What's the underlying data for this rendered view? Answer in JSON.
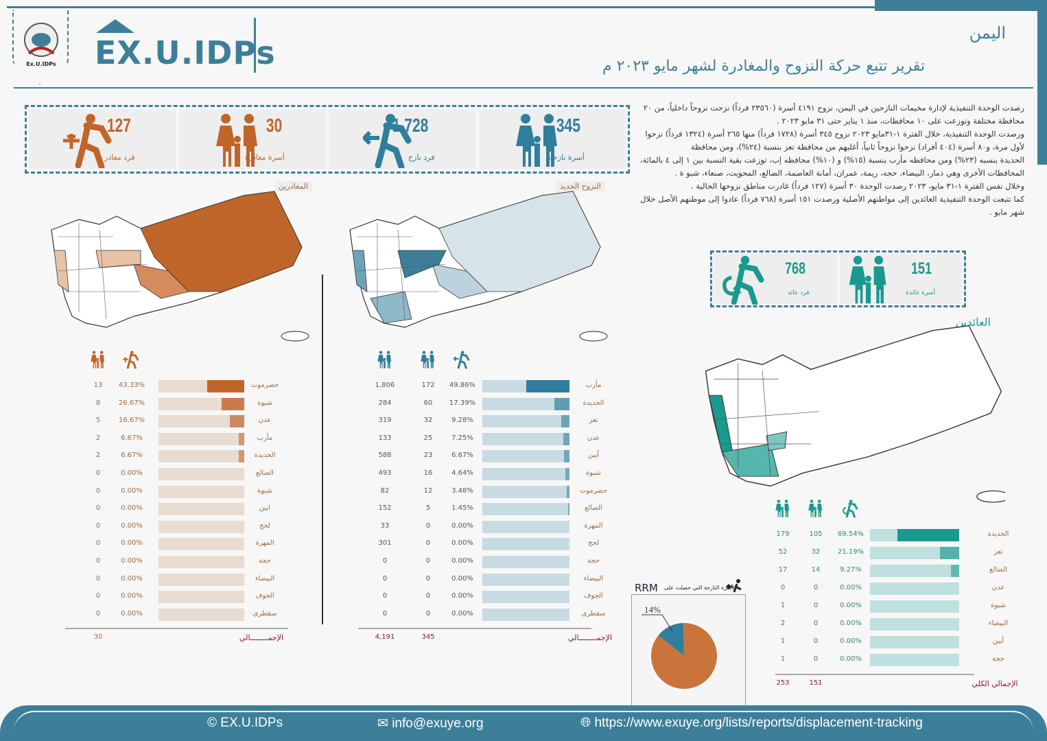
{
  "header": {
    "brand": "EX.U.IDPs",
    "logo_text": "Ex.U.IDPs",
    "country": "اليمن",
    "title": "تقرير تتبع حركة النزوح والمغادرة لشهر مايو ٢٠٢٣ م"
  },
  "colors": {
    "primary": "#3d7f99",
    "departure": "#c0652a",
    "displacement": "#2f7e9c",
    "return": "#1a9a8e"
  },
  "stats": [
    {
      "value": "127",
      "label": "فرد مغادر",
      "icon": "departing-person-plane-icon",
      "color": "orange"
    },
    {
      "value": "30",
      "label": "أسرة مغادرة",
      "icon": "family-icon",
      "color": "orange"
    },
    {
      "value": "1,728",
      "label": "فرد نازح",
      "icon": "displaced-person-icon",
      "color": "blue"
    },
    {
      "value": "345",
      "label": "أسرة نازحة",
      "icon": "family-icon",
      "color": "blue"
    }
  ],
  "returns": [
    {
      "value": "768",
      "label": "فرد عائد",
      "icon": "returning-person-icon"
    },
    {
      "value": "151",
      "label": "أسرة عائدة",
      "icon": "family-icon"
    }
  ],
  "map_titles": {
    "departures": "المغادرين",
    "new_displacement": "النزوح الجديد",
    "returnees": "العائدين"
  },
  "prose": [
    "رصدت الوحدة التنفيذية لإدارة مخيمات النازحين في اليمن، نزوح ٤١٩١ أسرة (٢٣٥٦٠ فرداً) نزحت نزوحاً داخلياً، من ٢٠ محافظة مختلفة وتوزعت على ١٠ محافظات، منذ ١ يناير حتى ٣١ مايو ٢٠٢٣ .",
    "ورصدت الوحدة التنفيذية، خلال الفترة ١-٣١مايو ٢٠٢٣ نزوح ٣٤٥ أسرة (١٧٢٨ فرداً) منها ٢٦٥ أسرة (١٣٢٤ فرداً) نزحوا لأول مرة، و٨٠ أسرة (٤٠٤ أفراد) نزحوا نزوحاً ثانياً، أغلبهم من محافظة تعز بنسبة (٢٤%)، ومن محافظة",
    "الحديدة بنسبه (٢٣%) ومن محافظه مأرب بنسبة (١٥%) و (١٠%) محافظه إب، توزعت بقية النسبة بين ١ إلى ٤ بالمائة، المحافظات الأخرى وهي ذمار، البيضاء، حجه، ريمة، عمران، أمانة العاصمة، الضالع، المحويت، صنعاء، شبو ة .",
    "وخلال نفس الفترة ١-٣١ مايو، ٢٠٢٣ رصدت الوحدة ٣٠ أسرة (١٢٧ فرداً) غادرت مناطق نزوحها الحالية .",
    "كما تتبعت الوحدة التنفيذية العائدين إلى مواطنهم الأصلية ورصدت ١٥١ أسرة (٧٦٨ فرداً) عادوا إلى موطنهم الأصل خلال شهر مايو ."
  ],
  "chart_data": [
    {
      "type": "table",
      "name": "departures",
      "columns": [
        "أسر",
        "أفراد %"
      ],
      "rows": [
        {
          "gov": "حضرموت",
          "families": 13,
          "pct": 43.33
        },
        {
          "gov": "شبوة",
          "families": 8,
          "pct": 26.67
        },
        {
          "gov": "عدن",
          "families": 5,
          "pct": 16.67
        },
        {
          "gov": "مأرب",
          "families": 2,
          "pct": 6.67
        },
        {
          "gov": "الحديدة",
          "families": 2,
          "pct": 6.67
        },
        {
          "gov": "الضالع",
          "families": 0,
          "pct": 0
        },
        {
          "gov": "شبوة",
          "families": 0,
          "pct": 0
        },
        {
          "gov": "ابين",
          "families": 0,
          "pct": 0
        },
        {
          "gov": "لحج",
          "families": 0,
          "pct": 0
        },
        {
          "gov": "المهرة",
          "families": 0,
          "pct": 0
        },
        {
          "gov": "حجة",
          "families": 0,
          "pct": 0
        },
        {
          "gov": "البيضاء",
          "families": 0,
          "pct": 0
        },
        {
          "gov": "الجوف",
          "families": 0,
          "pct": 0
        },
        {
          "gov": "سقطرى",
          "families": 0,
          "pct": 0
        }
      ],
      "total_label": "الإجمــــــــالي",
      "totals": {
        "families": "30"
      }
    },
    {
      "type": "table",
      "name": "new_displacement",
      "rows": [
        {
          "gov": "مأرب",
          "ytd": "1,806",
          "families": 172,
          "pct": 49.86
        },
        {
          "gov": "الحديدة",
          "ytd": "284",
          "families": 60,
          "pct": 17.39
        },
        {
          "gov": "تعز",
          "ytd": "319",
          "families": 32,
          "pct": 9.28
        },
        {
          "gov": "عدن",
          "ytd": "133",
          "families": 25,
          "pct": 7.25
        },
        {
          "gov": "أبين",
          "ytd": "588",
          "families": 23,
          "pct": 6.67
        },
        {
          "gov": "شبوة",
          "ytd": "493",
          "families": 16,
          "pct": 4.64
        },
        {
          "gov": "حضرموت",
          "ytd": "82",
          "families": 12,
          "pct": 3.48
        },
        {
          "gov": "الضالع",
          "ytd": "152",
          "families": 5,
          "pct": 1.45
        },
        {
          "gov": "المهرة",
          "ytd": "33",
          "families": 0,
          "pct": 0
        },
        {
          "gov": "لحج",
          "ytd": "301",
          "families": 0,
          "pct": 0
        },
        {
          "gov": "حجة",
          "ytd": "0",
          "families": 0,
          "pct": 0
        },
        {
          "gov": "البيضاء",
          "ytd": "0",
          "families": 0,
          "pct": 0
        },
        {
          "gov": "الجوف",
          "ytd": "0",
          "families": 0,
          "pct": 0
        },
        {
          "gov": "سقطرى",
          "ytd": "0",
          "families": 0,
          "pct": 0
        }
      ],
      "total_label": "الإجمــــــــالي",
      "totals": {
        "ytd": "4,191",
        "families": "345"
      }
    },
    {
      "type": "table",
      "name": "returnees",
      "rows": [
        {
          "gov": "الحديدة",
          "ytd": "179",
          "families": 105,
          "pct": 69.54
        },
        {
          "gov": "تعز",
          "ytd": "52",
          "families": 32,
          "pct": 21.19
        },
        {
          "gov": "الضالع",
          "ytd": "17",
          "families": 14,
          "pct": 9.27
        },
        {
          "gov": "عدن",
          "ytd": "0",
          "families": 0,
          "pct": 0
        },
        {
          "gov": "شبوة",
          "ytd": "1",
          "families": 0,
          "pct": 0
        },
        {
          "gov": "البيضاء",
          "ytd": "2",
          "families": 0,
          "pct": 0
        },
        {
          "gov": "أبين",
          "ytd": "1",
          "families": 0,
          "pct": 0
        },
        {
          "gov": "حجة",
          "ytd": "1",
          "families": 0,
          "pct": 0
        }
      ],
      "total_label": "الإجمالي الكلي",
      "totals": {
        "ytd": "253",
        "families": "151"
      }
    },
    {
      "type": "pie",
      "name": "rrm",
      "title": "RRM",
      "subtitle": "الأسرة النازحة التي حصلت على",
      "values": [
        14,
        86
      ],
      "label": "14%",
      "colors": [
        "#2f7e9c",
        "#c8743a"
      ]
    }
  ],
  "footer": {
    "brand": "EX.U.IDPs",
    "email": "info@exuye.org",
    "url": "https://www.exuye.org/lists/reports/displacement-tracking"
  }
}
